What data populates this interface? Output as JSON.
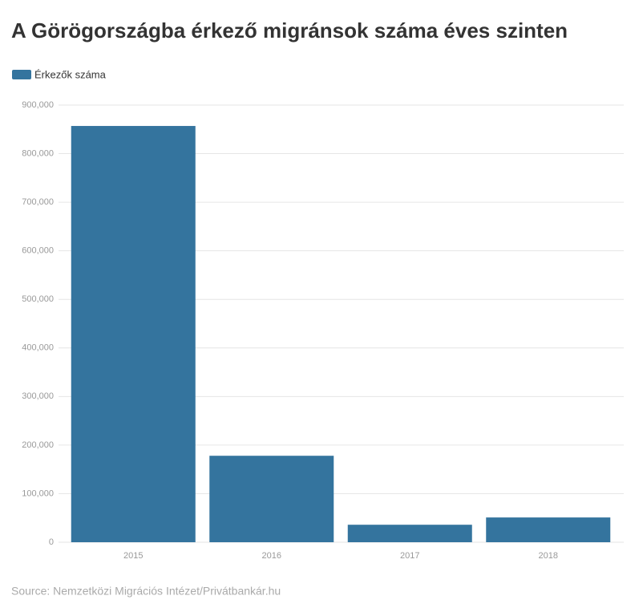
{
  "chart_data": {
    "type": "bar",
    "title": "A Görögországba érkező migránsok száma éves szinten",
    "series": [
      {
        "name": "Érkezők száma",
        "color": "#34749e",
        "values": [
          857000,
          178000,
          36000,
          51000
        ]
      }
    ],
    "categories": [
      "2015",
      "2016",
      "2017",
      "2018"
    ],
    "ylim": [
      0,
      900000
    ],
    "yticks": [
      0,
      {
        "value": 100000,
        "label": "100,000"
      },
      {
        "value": 200000,
        "label": "200,000"
      },
      {
        "value": 300000,
        "label": "300,000"
      },
      {
        "value": 400000,
        "label": "400,000"
      },
      {
        "value": 500000,
        "label": "500,000"
      },
      {
        "value": 600000,
        "label": "600,000"
      },
      {
        "value": 700000,
        "label": "700,000"
      },
      {
        "value": 800000,
        "label": "800,000"
      },
      {
        "value": 900000,
        "label": "900,000"
      }
    ],
    "grid": true,
    "source": "Source: Nemzetközi Migrációs Intézet/Privátbankár.hu"
  }
}
